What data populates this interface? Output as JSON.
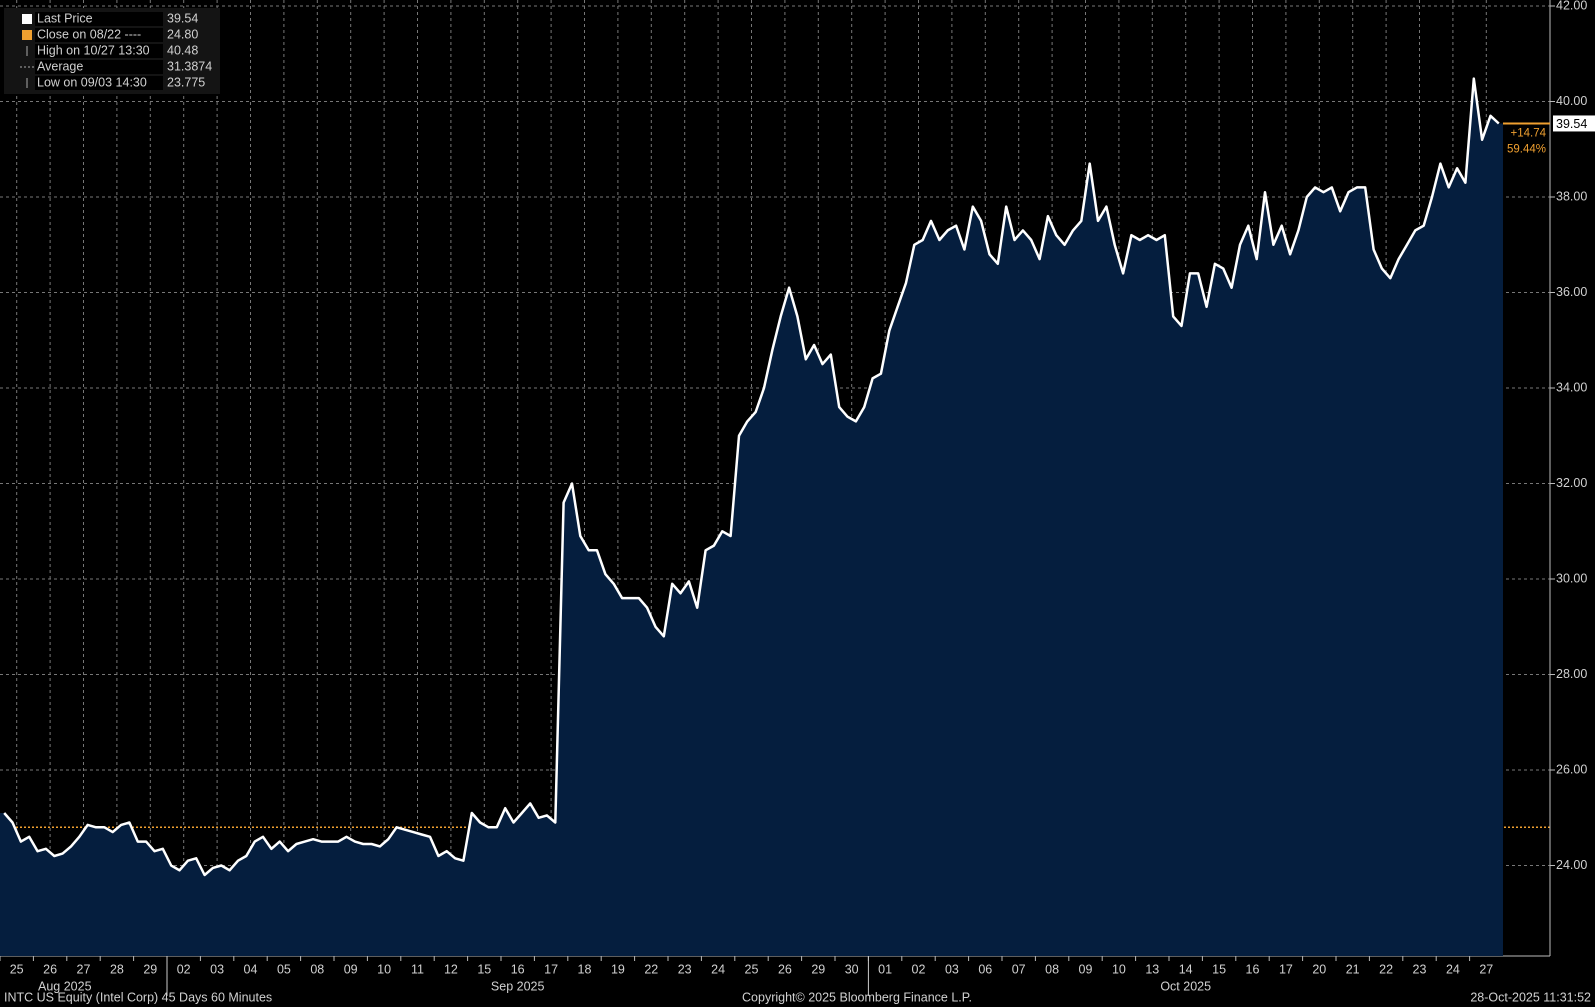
{
  "chart_data": {
    "type": "area",
    "series": [
      {
        "color": "#ffffff",
        "fill": "#051e3e",
        "values": [
          25.1,
          24.9,
          24.5,
          24.6,
          24.3,
          24.35,
          24.2,
          24.25,
          24.4,
          24.6,
          24.85,
          24.8,
          24.8,
          24.7,
          24.85,
          24.9,
          24.5,
          24.5,
          24.3,
          24.35,
          24.0,
          23.9,
          24.1,
          24.15,
          23.8,
          23.95,
          24.0,
          23.9,
          24.1,
          24.2,
          24.5,
          24.6,
          24.35,
          24.5,
          24.3,
          24.45,
          24.5,
          24.55,
          24.5,
          24.5,
          24.5,
          24.6,
          24.5,
          24.45,
          24.45,
          24.4,
          24.55,
          24.8,
          24.75,
          24.7,
          24.65,
          24.6,
          24.2,
          24.3,
          24.15,
          24.1,
          25.1,
          24.9,
          24.8,
          24.8,
          25.2,
          24.9,
          25.1,
          25.3,
          25.0,
          25.05,
          24.9,
          31.6,
          32.0,
          30.9,
          30.6,
          30.6,
          30.1,
          29.9,
          29.6,
          29.6,
          29.6,
          29.4,
          29.0,
          28.8,
          29.9,
          29.7,
          29.95,
          29.4,
          30.6,
          30.7,
          31.0,
          30.9,
          33.0,
          33.3,
          33.5,
          34.0,
          34.8,
          35.5,
          36.1,
          35.5,
          34.6,
          34.9,
          34.5,
          34.7,
          33.6,
          33.4,
          33.3,
          33.6,
          34.2,
          34.3,
          35.2,
          35.7,
          36.2,
          37.0,
          37.1,
          37.5,
          37.1,
          37.3,
          37.4,
          36.9,
          37.8,
          37.5,
          36.8,
          36.6,
          37.8,
          37.1,
          37.3,
          37.1,
          36.7,
          37.6,
          37.2,
          37.0,
          37.3,
          37.5,
          38.7,
          37.5,
          37.8,
          37.0,
          36.4,
          37.2,
          37.1,
          37.2,
          37.1,
          37.2,
          35.5,
          35.3,
          36.4,
          36.4,
          35.7,
          36.6,
          36.5,
          36.1,
          37.0,
          37.4,
          36.7,
          38.1,
          37.0,
          37.4,
          36.8,
          37.3,
          38.0,
          38.2,
          38.1,
          38.2,
          37.7,
          38.1,
          38.2,
          38.2,
          36.9,
          36.5,
          36.3,
          36.7,
          37.0,
          37.3,
          37.4,
          38.0,
          38.7,
          38.2,
          38.6,
          38.3,
          40.48,
          39.2,
          39.7,
          39.54
        ]
      }
    ],
    "categories": [
      "25",
      null,
      null,
      null,
      "26",
      null,
      null,
      null,
      "27",
      null,
      null,
      null,
      "28",
      null,
      null,
      null,
      "29",
      null,
      null,
      null,
      "02",
      null,
      null,
      null,
      "03",
      null,
      null,
      null,
      "04",
      null,
      null,
      null,
      "05",
      null,
      null,
      null,
      "08",
      null,
      null,
      null,
      "09",
      null,
      null,
      null,
      "10",
      null,
      null,
      null,
      "11",
      null,
      null,
      null,
      "12",
      null,
      null,
      null,
      "15",
      null,
      null,
      null,
      "16",
      null,
      null,
      null,
      "17",
      null,
      null,
      null,
      "18",
      null,
      null,
      null,
      "19",
      null,
      null,
      null,
      "22",
      null,
      null,
      null,
      "23",
      null,
      null,
      null,
      "24",
      null,
      null,
      null,
      "25",
      null,
      null,
      null,
      "26",
      null,
      null,
      null,
      "29",
      null,
      null,
      null,
      "30",
      null,
      null,
      null,
      "01",
      null,
      null,
      null,
      "02",
      null,
      null,
      null,
      "03",
      null,
      null,
      null,
      "06",
      null,
      null,
      null,
      "07",
      null,
      null,
      null,
      "08",
      null,
      null,
      null,
      "09",
      null,
      null,
      null,
      "10",
      null,
      null,
      null,
      "13",
      null,
      null,
      null,
      "14",
      null,
      null,
      null,
      "15",
      null,
      null,
      null,
      "16",
      null,
      null,
      null,
      "17",
      null,
      null,
      null,
      "20",
      null,
      null,
      null,
      "21",
      null,
      null,
      null,
      "22",
      null,
      null,
      null,
      "23",
      null,
      null,
      null,
      "24",
      null,
      null,
      null,
      "27",
      null,
      null,
      null
    ],
    "month_labels": [
      "Aug 2025",
      "Sep 2025",
      "Oct 2025"
    ],
    "ylim": [
      22,
      42
    ],
    "yticks": [
      {
        "value": 24,
        "label": "24.00"
      },
      {
        "value": 26,
        "label": "26.00"
      },
      {
        "value": 28,
        "label": "28.00"
      },
      {
        "value": 30,
        "label": "30.00"
      },
      {
        "value": 32,
        "label": "32.00"
      },
      {
        "value": 34,
        "label": "34.00"
      },
      {
        "value": 36,
        "label": "36.00"
      },
      {
        "value": 38,
        "label": "38.00"
      },
      {
        "value": 40,
        "label": "40.00"
      },
      {
        "value": 42,
        "label": "42.00"
      }
    ],
    "grid": true,
    "legend": [
      {
        "name": "Last Price",
        "value": 39.54
      },
      {
        "name": "Close on 08/22 ----",
        "value": 24.8,
        "value_label": "24.80"
      },
      {
        "name": "High on 10/27 13:30",
        "value": 40.48
      },
      {
        "name": "Average",
        "value": 31.3874
      },
      {
        "name": "Low on 09/03 14:30",
        "value": 23.775
      }
    ],
    "change": {
      "value": 14.74,
      "label": "+14.74"
    },
    "change_pct": {
      "value": 59.44,
      "label": "59.44%"
    },
    "footer": {
      "left": "INTC US Equity (Intel Corp) 45 Days 60 Minutes",
      "center": "Copyright© 2025 Bloomberg Finance L.P.",
      "right": "28-Oct-2025 11:31:52"
    }
  }
}
